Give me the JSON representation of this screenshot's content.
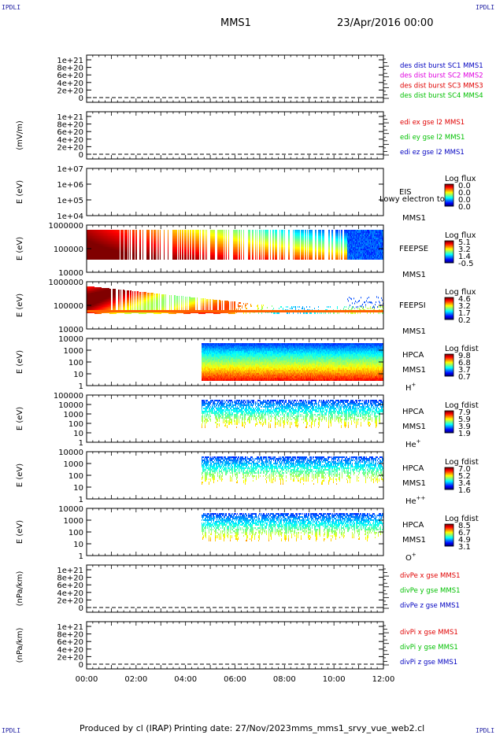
{
  "corner_label": "IPDLI",
  "header": {
    "spacecraft": "MMS1",
    "date": "23/Apr/2016 00:00"
  },
  "footer": {
    "produced": "Produced by cl (IRAP)",
    "printing_date": "Printing date: 27/Nov/2023",
    "filename": "mms_mms1_srvy_vue_web2.cl"
  },
  "colors": {
    "red": "#e00000",
    "green": "#00c000",
    "blue": "#0000c0",
    "magenta": "#e000e0",
    "dash": "#000000"
  },
  "time_axis": {
    "ticks": [
      "00:00",
      "02:00",
      "04:00",
      "06:00",
      "08:00",
      "10:00",
      "12:00"
    ],
    "range_hours": [
      0,
      12
    ]
  },
  "chart_data": [
    {
      "type": "line",
      "id": "des_dist",
      "ylabel": "",
      "yticks": [
        "1e+21",
        "8e+20",
        "6e+20",
        "4e+20",
        "2e+20",
        "0"
      ],
      "ylim": [
        0,
        1e+21
      ],
      "dashed_zero": true,
      "legend": [
        {
          "name": "des dist burst SC1 MMS1",
          "color": "#0000c0"
        },
        {
          "name": "des dist burst SC2 MMS2",
          "color": "#e000e0"
        },
        {
          "name": "des dist burst SC3 MMS3",
          "color": "#e00000"
        },
        {
          "name": "des dist burst SC4 MMS4",
          "color": "#00c000"
        }
      ]
    },
    {
      "type": "line",
      "id": "edi",
      "ylabel": "(mV/m)",
      "yticks": [
        "1e+21",
        "8e+20",
        "6e+20",
        "4e+20",
        "2e+20",
        "0"
      ],
      "ylim": [
        0,
        1e+21
      ],
      "dashed_zero": true,
      "legend": [
        {
          "name": "edi ex gse l2 MMS1",
          "color": "#e00000"
        },
        {
          "name": "edi ey gse l2 MMS1",
          "color": "#00c000"
        },
        {
          "name": "edi ez gse l2 MMS1",
          "color": "#0000c0"
        }
      ]
    },
    {
      "type": "heatmap",
      "id": "eis",
      "ylabel": "E (eV)",
      "yticks": [
        "1e+07",
        "1e+06",
        "1e+05",
        "1e+04"
      ],
      "scale": "log",
      "labels": [
        "EIS",
        "MMS1"
      ],
      "overlay_text": "Lowy electron to",
      "colorbar": {
        "title": "Log flux",
        "values": [
          "0.0",
          "0.0",
          "0.0",
          "0.0"
        ]
      }
    },
    {
      "type": "heatmap",
      "id": "feepse",
      "ylabel": "E (eV)",
      "yticks": [
        "1000000",
        "100000",
        "10000"
      ],
      "scale": "log",
      "labels": [
        "FEEPSE",
        "MMS1"
      ],
      "colorbar": {
        "title": "Log flux",
        "values": [
          "5.1",
          "3.2",
          "1.4",
          "-0.5"
        ]
      }
    },
    {
      "type": "heatmap",
      "id": "feepsi",
      "ylabel": "E (eV)",
      "yticks": [
        "1000000",
        "100000",
        "10000"
      ],
      "scale": "log",
      "labels": [
        "FEEPSI",
        "MMS1"
      ],
      "colorbar": {
        "title": "Log flux",
        "values": [
          "4.6",
          "3.2",
          "1.7",
          "0.2"
        ]
      }
    },
    {
      "type": "heatmap",
      "id": "hpca_h",
      "ylabel": "E (eV)",
      "yticks": [
        "10000",
        "1000",
        "100",
        "10",
        "1"
      ],
      "scale": "log",
      "labels": [
        "HPCA",
        "MMS1"
      ],
      "species": "H",
      "charge": "+",
      "data_start_hour": 4.65,
      "colorbar": {
        "title": "Log fdist",
        "values": [
          "9.8",
          "6.8",
          "3.7",
          "0.7"
        ]
      }
    },
    {
      "type": "heatmap",
      "id": "hpca_he",
      "ylabel": "E (eV)",
      "yticks": [
        "100000",
        "10000",
        "1000",
        "100",
        "10",
        "1"
      ],
      "scale": "log",
      "labels": [
        "HPCA",
        "MMS1"
      ],
      "species": "He",
      "charge": "+",
      "data_start_hour": 4.65,
      "colorbar": {
        "title": "Log fdist",
        "values": [
          "7.9",
          "5.9",
          "3.9",
          "1.9"
        ]
      }
    },
    {
      "type": "heatmap",
      "id": "hpca_hepp",
      "ylabel": "E (eV)",
      "yticks": [
        "10000",
        "1000",
        "100",
        "10",
        "1"
      ],
      "scale": "log",
      "labels": [
        "HPCA",
        "MMS1"
      ],
      "species": "He",
      "charge": "++",
      "data_start_hour": 4.65,
      "colorbar": {
        "title": "Log fdist",
        "values": [
          "7.0",
          "5.2",
          "3.4",
          "1.6"
        ]
      }
    },
    {
      "type": "heatmap",
      "id": "hpca_o",
      "ylabel": "E (eV)",
      "yticks": [
        "10000",
        "1000",
        "100",
        "10",
        "1"
      ],
      "scale": "log",
      "labels": [
        "HPCA",
        "MMS1"
      ],
      "species": "O",
      "charge": "+",
      "data_start_hour": 4.65,
      "colorbar": {
        "title": "Log fdist",
        "values": [
          "8.5",
          "6.7",
          "4.9",
          "3.1"
        ]
      }
    },
    {
      "type": "line",
      "id": "divpe",
      "ylabel": "(nPa/km)",
      "yticks": [
        "1e+21",
        "8e+20",
        "6e+20",
        "4e+20",
        "2e+20",
        "0"
      ],
      "ylim": [
        0,
        1e+21
      ],
      "dashed_zero": true,
      "legend": [
        {
          "name": "divPe x gse MMS1",
          "color": "#e00000"
        },
        {
          "name": "divPe y gse MMS1",
          "color": "#00c000"
        },
        {
          "name": "divPe z gse MMS1",
          "color": "#0000c0"
        }
      ]
    },
    {
      "type": "line",
      "id": "divpi",
      "ylabel": "(nPa/km)",
      "yticks": [
        "1e+21",
        "8e+20",
        "6e+20",
        "4e+20",
        "2e+20",
        "0"
      ],
      "ylim": [
        0,
        1e+21
      ],
      "dashed_zero": true,
      "legend": [
        {
          "name": "divPi x gse MMS1",
          "color": "#e00000"
        },
        {
          "name": "divPi y gse MMS1",
          "color": "#00c000"
        },
        {
          "name": "divPi z gse MMS1",
          "color": "#0000c0"
        }
      ]
    }
  ]
}
